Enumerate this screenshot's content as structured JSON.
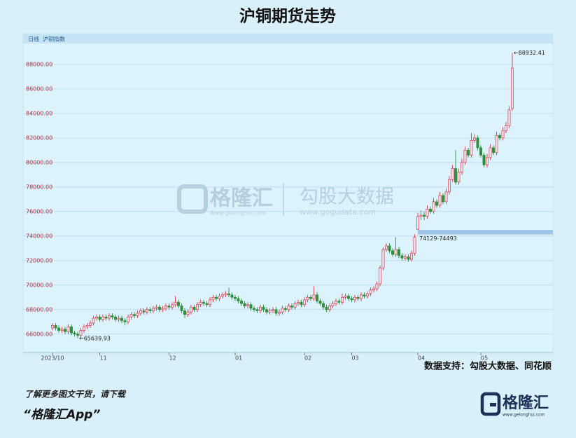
{
  "chart_data": {
    "type": "candlestick",
    "title": "沪铜期货走势",
    "period": "日线",
    "subtitle": "沪铜指数",
    "source": "数据支持：勾股大数据、同花顺",
    "up_color": "#d93a4e",
    "down_color": "#2f8f3a",
    "grid": true,
    "ylim": [
      64500,
      89250
    ],
    "yticks": [
      {
        "value": 66000,
        "label": "66000.00"
      },
      {
        "value": 68000,
        "label": "68000.00"
      },
      {
        "value": 70000,
        "label": "70000.00"
      },
      {
        "value": 72000,
        "label": "72000.00"
      },
      {
        "value": 74000,
        "label": "74000.00"
      },
      {
        "value": 76000,
        "label": "76000.00"
      },
      {
        "value": 78000,
        "label": "78000.00"
      },
      {
        "value": 80000,
        "label": "80000.00"
      },
      {
        "value": 82000,
        "label": "82000.00"
      },
      {
        "value": 84000,
        "label": "84000.00"
      },
      {
        "value": 86000,
        "label": "86000.00"
      },
      {
        "value": 88000,
        "label": "88000.00"
      }
    ],
    "categories": [
      "2023/10",
      null,
      null,
      null,
      null,
      null,
      null,
      null,
      null,
      null,
      null,
      null,
      null,
      null,
      null,
      "11",
      null,
      null,
      null,
      null,
      null,
      null,
      null,
      null,
      null,
      null,
      null,
      null,
      null,
      null,
      null,
      null,
      null,
      null,
      null,
      null,
      null,
      "12",
      null,
      null,
      null,
      null,
      null,
      null,
      null,
      null,
      null,
      null,
      null,
      null,
      null,
      null,
      null,
      null,
      null,
      null,
      null,
      null,
      "01",
      null,
      null,
      null,
      null,
      null,
      null,
      null,
      null,
      null,
      null,
      null,
      null,
      null,
      null,
      null,
      null,
      null,
      null,
      null,
      null,
      null,
      "02",
      null,
      null,
      null,
      null,
      null,
      null,
      null,
      null,
      null,
      null,
      null,
      null,
      null,
      null,
      "03",
      null,
      null,
      null,
      null,
      null,
      null,
      null,
      null,
      null,
      null,
      null,
      null,
      null,
      null,
      null,
      null,
      null,
      null,
      null,
      null,
      "04",
      null,
      null,
      null,
      null,
      null,
      null,
      null,
      null,
      null,
      null,
      null,
      null,
      null,
      null,
      null,
      null,
      null,
      null,
      null,
      "05",
      null,
      null,
      null,
      null,
      null,
      null,
      null,
      null,
      null,
      null
    ],
    "series": [
      {
        "name": "沪铜指数",
        "values": [
          [
            66500,
            66900,
            66300,
            66700
          ],
          [
            66700,
            66900,
            66300,
            66500
          ],
          [
            66500,
            66700,
            66100,
            66300
          ],
          [
            66300,
            66600,
            66100,
            66400
          ],
          [
            66400,
            66600,
            66000,
            66200
          ],
          [
            66200,
            66800,
            66000,
            66600
          ],
          [
            66600,
            66800,
            65900,
            66100
          ],
          [
            66100,
            66300,
            65800,
            66000
          ],
          [
            66000,
            66200,
            65639.93,
            65900
          ],
          [
            65900,
            66500,
            65700,
            66300
          ],
          [
            66300,
            66800,
            66100,
            66600
          ],
          [
            66600,
            66900,
            66400,
            66700
          ],
          [
            66700,
            67100,
            66500,
            66900
          ],
          [
            66900,
            67500,
            66700,
            67300
          ],
          [
            67300,
            67600,
            67100,
            67400
          ],
          [
            67400,
            67600,
            67000,
            67200
          ],
          [
            67200,
            67600,
            67000,
            67400
          ],
          [
            67400,
            67600,
            67100,
            67300
          ],
          [
            67300,
            67700,
            67100,
            67500
          ],
          [
            67500,
            67700,
            67200,
            67400
          ],
          [
            67400,
            67600,
            67000,
            67200
          ],
          [
            67200,
            67500,
            67000,
            67300
          ],
          [
            67300,
            67500,
            66900,
            67100
          ],
          [
            67100,
            67300,
            66700,
            67000
          ],
          [
            67000,
            67600,
            66800,
            67400
          ],
          [
            67400,
            67800,
            67200,
            67600
          ],
          [
            67600,
            67800,
            67300,
            67500
          ],
          [
            67500,
            67900,
            67300,
            67700
          ],
          [
            67700,
            68100,
            67500,
            67900
          ],
          [
            67900,
            68100,
            67600,
            67800
          ],
          [
            67800,
            68200,
            67600,
            68000
          ],
          [
            68000,
            68200,
            67700,
            67900
          ],
          [
            67900,
            68300,
            67700,
            68100
          ],
          [
            68100,
            68400,
            67900,
            68200
          ],
          [
            68200,
            68400,
            67800,
            68000
          ],
          [
            68000,
            68300,
            67800,
            68100
          ],
          [
            68100,
            68500,
            67900,
            68300
          ],
          [
            68300,
            68500,
            68000,
            68200
          ],
          [
            68200,
            68600,
            68000,
            68400
          ],
          [
            68400,
            69100,
            68200,
            68600
          ],
          [
            68600,
            68800,
            68100,
            68300
          ],
          [
            68300,
            68500,
            67700,
            67900
          ],
          [
            67900,
            68100,
            67300,
            67600
          ],
          [
            67600,
            68000,
            67400,
            67800
          ],
          [
            67800,
            68400,
            67600,
            68200
          ],
          [
            68200,
            68400,
            67800,
            68000
          ],
          [
            68000,
            68600,
            67800,
            68400
          ],
          [
            68400,
            68800,
            68200,
            68600
          ],
          [
            68600,
            68800,
            68300,
            68500
          ],
          [
            68500,
            68700,
            68200,
            68400
          ],
          [
            68400,
            69000,
            68200,
            68800
          ],
          [
            68800,
            69200,
            68600,
            69000
          ],
          [
            69000,
            69200,
            68700,
            68900
          ],
          [
            68900,
            69300,
            68700,
            69100
          ],
          [
            69100,
            69400,
            68900,
            69200
          ],
          [
            69200,
            69500,
            69000,
            69300
          ],
          [
            69300,
            69800,
            69000,
            69200
          ],
          [
            69200,
            69400,
            68800,
            69000
          ],
          [
            69000,
            69200,
            68700,
            68900
          ],
          [
            68900,
            69100,
            68500,
            68700
          ],
          [
            68700,
            68900,
            68300,
            68500
          ],
          [
            68500,
            68700,
            68100,
            68300
          ],
          [
            68300,
            68600,
            68100,
            68400
          ],
          [
            68400,
            68600,
            67900,
            68100
          ],
          [
            68100,
            68300,
            67800,
            68000
          ],
          [
            68000,
            68200,
            67700,
            67900
          ],
          [
            67900,
            68400,
            67700,
            68200
          ],
          [
            68200,
            68400,
            67800,
            68000
          ],
          [
            68000,
            68200,
            67600,
            67800
          ],
          [
            67800,
            68100,
            67600,
            67900
          ],
          [
            67900,
            68200,
            67700,
            68000
          ],
          [
            68000,
            68200,
            67500,
            67700
          ],
          [
            67700,
            68000,
            67500,
            67800
          ],
          [
            67800,
            68300,
            67600,
            68100
          ],
          [
            68100,
            68300,
            67800,
            68000
          ],
          [
            68000,
            68500,
            67800,
            68300
          ],
          [
            68300,
            68500,
            68000,
            68200
          ],
          [
            68200,
            68700,
            68000,
            68500
          ],
          [
            68500,
            68800,
            68300,
            68600
          ],
          [
            68600,
            68800,
            68200,
            68400
          ],
          [
            68400,
            69000,
            68200,
            68800
          ],
          [
            68800,
            69200,
            68600,
            69000
          ],
          [
            69000,
            69200,
            68700,
            68900
          ],
          [
            68900,
            69900,
            68700,
            69200
          ],
          [
            69200,
            69400,
            68500,
            68700
          ],
          [
            68700,
            68900,
            68300,
            68500
          ],
          [
            68500,
            68700,
            68000,
            68200
          ],
          [
            68200,
            68400,
            67800,
            68000
          ],
          [
            68000,
            68500,
            67800,
            68300
          ],
          [
            68300,
            68700,
            68100,
            68500
          ],
          [
            68500,
            68900,
            68300,
            68700
          ],
          [
            68700,
            68900,
            68400,
            68600
          ],
          [
            68600,
            69300,
            68400,
            69000
          ],
          [
            69000,
            69300,
            68800,
            69100
          ],
          [
            69100,
            69300,
            68700,
            68900
          ],
          [
            68900,
            69100,
            68600,
            68800
          ],
          [
            68800,
            69200,
            68600,
            69000
          ],
          [
            69000,
            69200,
            68700,
            68900
          ],
          [
            68900,
            69400,
            68700,
            69200
          ],
          [
            69200,
            69400,
            68900,
            69100
          ],
          [
            69100,
            69500,
            68900,
            69300
          ],
          [
            69300,
            69800,
            69100,
            69600
          ],
          [
            69600,
            69900,
            69400,
            69700
          ],
          [
            69700,
            70300,
            69500,
            70100
          ],
          [
            70100,
            71600,
            69900,
            71400
          ],
          [
            71400,
            73100,
            71200,
            72900
          ],
          [
            72900,
            73400,
            72700,
            73200
          ],
          [
            73200,
            73400,
            72600,
            72800
          ],
          [
            72800,
            73000,
            72300,
            72500
          ],
          [
            72500,
            73900,
            72300,
            72900
          ],
          [
            72900,
            73100,
            72200,
            72400
          ],
          [
            72400,
            72600,
            72000,
            72200
          ],
          [
            72200,
            72500,
            72000,
            72300
          ],
          [
            72300,
            72500,
            71900,
            72100
          ],
          [
            72100,
            72800,
            71900,
            72600
          ],
          [
            72600,
            74129,
            72400,
            73900
          ],
          [
            74550,
            75900,
            74493,
            75600
          ],
          [
            75600,
            76100,
            75300,
            75700
          ],
          [
            75700,
            76000,
            75300,
            75600
          ],
          [
            75600,
            76500,
            75400,
            76200
          ],
          [
            76200,
            76400,
            75800,
            76000
          ],
          [
            76000,
            77100,
            75800,
            76800
          ],
          [
            76800,
            77000,
            76300,
            76500
          ],
          [
            76500,
            77600,
            76300,
            77300
          ],
          [
            77300,
            77500,
            76600,
            76800
          ],
          [
            76800,
            77900,
            76600,
            77600
          ],
          [
            77600,
            78900,
            77400,
            78600
          ],
          [
            78600,
            79800,
            78400,
            79500
          ],
          [
            79500,
            81000,
            78200,
            78400
          ],
          [
            78400,
            79500,
            78200,
            79200
          ],
          [
            79200,
            80300,
            79000,
            80000
          ],
          [
            80000,
            81300,
            79800,
            81000
          ],
          [
            81000,
            81200,
            80400,
            80600
          ],
          [
            80600,
            82400,
            80400,
            81800
          ],
          [
            81800,
            82300,
            81600,
            82000
          ],
          [
            82000,
            82200,
            81000,
            81200
          ],
          [
            81200,
            81400,
            80400,
            80600
          ],
          [
            80600,
            80800,
            79600,
            79800
          ],
          [
            79800,
            80700,
            79600,
            80400
          ],
          [
            80400,
            81500,
            80200,
            81200
          ],
          [
            81200,
            81400,
            80600,
            80800
          ],
          [
            80800,
            82500,
            80600,
            82200
          ],
          [
            82200,
            82400,
            81800,
            82000
          ],
          [
            82000,
            82900,
            81800,
            82600
          ],
          [
            82600,
            83300,
            82400,
            83000
          ],
          [
            83000,
            84600,
            82800,
            84300
          ],
          [
            84400,
            88932.41,
            84200,
            87700
          ]
        ]
      }
    ],
    "annotations": [
      {
        "text": "←88932.41"
      },
      {
        "text": "←65639.93"
      }
    ],
    "gap": {
      "label": "74129-74493",
      "low": 74129,
      "high": 74493,
      "color": "#9dc3e6"
    }
  },
  "watermark": {
    "brand": "格隆汇",
    "brand_url": "www.gelonghui.com",
    "partner": "勾股大数据",
    "partner_url": "www.gogudata.com"
  },
  "footer": {
    "line1": "了解更多图文干货，请下载",
    "line2": "“格隆汇App”",
    "logo": "格隆汇",
    "logo_url": "www.gelonghui.com"
  }
}
